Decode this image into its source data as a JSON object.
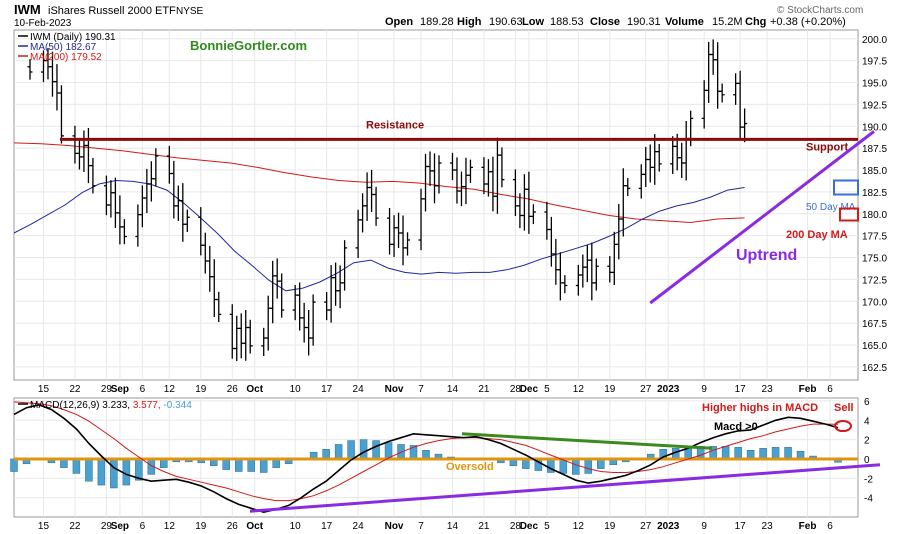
{
  "header": {
    "ticker": "IWM",
    "name": "iShares Russell 2000 ETF",
    "exchange": "NYSE",
    "date": "10-Feb-2023",
    "open_label": "Open",
    "open": "189.28",
    "high_label": "High",
    "high": "190.63",
    "low_label": "Low",
    "low": "188.53",
    "close_label": "Close",
    "close": "190.31",
    "volume_label": "Volume",
    "volume": "15.2M",
    "chg_label": "Chg",
    "chg": "+0.38 (+0.20%)",
    "watermark": "© StockCharts.com"
  },
  "colors": {
    "price": "#000000",
    "ma50": "#1f2a9a",
    "ma200": "#d11a1a",
    "resistance": "#8b0a0a",
    "uptrend": "#8a2be2",
    "oversold": "#e0950e",
    "downtrend_macd": "#3a8a1f",
    "histogram": "#4aa0cf",
    "brand": "#2e8b1c",
    "annotation_red": "#d11a1a",
    "annotation_blue": "#3b6fd6",
    "grid": "#e8e8e8"
  },
  "chart_data": [
    {
      "type": "ohlc",
      "legend": [
        {
          "name": "IWM (Daily)",
          "value": "190.31"
        },
        {
          "name": "MA(50)",
          "value": "182.67"
        },
        {
          "name": "MA(200)",
          "value": "179.52"
        }
      ],
      "ylim": [
        161,
        201
      ],
      "yticks": [
        162.5,
        165.0,
        167.5,
        170.0,
        172.5,
        175.0,
        177.5,
        180.0,
        182.5,
        185.0,
        187.5,
        190.0,
        192.5,
        195.0,
        197.5,
        200.0
      ],
      "xticks": [
        "15",
        "22",
        "29",
        "Sep",
        "6",
        "12",
        "19",
        "26",
        "Oct",
        "10",
        "17",
        "24",
        "Nov",
        "7",
        "14",
        "21",
        "28",
        "Dec",
        "5",
        "12",
        "19",
        "27",
        "2023",
        "9",
        "17",
        "23",
        "Feb",
        "6"
      ],
      "dates_start": "2022-08-12",
      "dates_end": "2023-02-10",
      "close": [
        196.2,
        197.5,
        196.8,
        195.1,
        193.8,
        188.9,
        186.9,
        186.5,
        187.8,
        185.5,
        183.2,
        181.0,
        182.4,
        180.1,
        178.5,
        177.4,
        179.9,
        181.8,
        183.4,
        184.0,
        186.6,
        184.6,
        180.9,
        181.5,
        178.8,
        179.6,
        176.4,
        174.6,
        172.8,
        170.2,
        168.5,
        164.6,
        166.9,
        165.2,
        167.0,
        164.9,
        165.8,
        169.2,
        172.9,
        172.3,
        169.0,
        170.7,
        168.1,
        167.0,
        165.8,
        169.9,
        169.0,
        172.7,
        171.2,
        172.1,
        176.1,
        179.3,
        180.9,
        183.0,
        182.2,
        179.5,
        176.5,
        178.4,
        177.8,
        176.1,
        177.0,
        181.7,
        185.4,
        184.9,
        183.2,
        185.8,
        185.0,
        182.6,
        183.1,
        184.4,
        185.3,
        183.4,
        184.8,
        182.0,
        186.7,
        183.9,
        180.9,
        179.8,
        182.8,
        179.7,
        180.2,
        178.2,
        175.4,
        173.6,
        172.1,
        171.8,
        173.0,
        173.9,
        174.7,
        172.1,
        174.0,
        173.3,
        176.5,
        179.4,
        183.2,
        182.9,
        184.5,
        186.2,
        185.3,
        187.1,
        185.7,
        187.7,
        186.4,
        185.8,
        188.6,
        190.9,
        194.1,
        198.2,
        197.6,
        194.0,
        193.6,
        194.9,
        189.9,
        190.31
      ],
      "ma50": [
        177.8,
        178.8,
        179.9,
        181.0,
        182.4,
        183.4,
        183.8,
        183.7,
        183.4,
        182.7,
        181.2,
        179.5,
        177.7,
        175.7,
        174.1,
        172.4,
        171.2,
        171.5,
        172.2,
        173.2,
        174.4,
        174.7,
        173.8,
        173.3,
        173.1,
        173.3,
        173.2,
        173.3,
        173.3,
        173.6,
        174.1,
        174.8,
        175.4,
        176.0,
        176.6,
        177.4,
        178.3,
        179.4,
        180.3,
        180.9,
        181.3,
        181.9,
        182.7,
        183.0
      ],
      "ma200": [
        188.1,
        188.0,
        187.8,
        187.5,
        187.2,
        186.8,
        186.4,
        186.1,
        185.8,
        185.3,
        184.7,
        184.2,
        183.8,
        183.6,
        183.7,
        183.5,
        183.1,
        182.8,
        182.2,
        181.7,
        181.0,
        180.4,
        179.8,
        179.4,
        179.2,
        179.0,
        179.4,
        179.52
      ],
      "annotations": {
        "brand": "BonnieGortler.com",
        "resistance": "Resistance",
        "resistance_level": 188.5,
        "support": "Support",
        "ma50_tag": "50 Day MA",
        "ma200_tag": "200 Day MA",
        "uptrend": "Uptrend",
        "uptrend_start": [
          "2022-12-28",
          169.8
        ],
        "uptrend_end": [
          "2023-02-10",
          188.5
        ]
      }
    },
    {
      "type": "macd",
      "legend": {
        "label": "MACD(12,26,9)",
        "macd": "3.233",
        "signal": "3.577",
        "hist": "-0.344"
      },
      "ylim": [
        -6.0,
        6.3
      ],
      "yticks": [
        -4,
        -2,
        0,
        2,
        4,
        6
      ],
      "macd": [
        4.6,
        5.3,
        5.6,
        5.1,
        4.2,
        3.1,
        1.6,
        0.3,
        -0.9,
        -1.6,
        -2.0,
        -2.3,
        -2.2,
        -2.1,
        -2.4,
        -2.8,
        -3.4,
        -4.1,
        -4.7,
        -5.1,
        -5.5,
        -5.2,
        -4.8,
        -4.0,
        -3.1,
        -2.3,
        -1.2,
        -0.1,
        0.7,
        1.3,
        1.8,
        2.2,
        2.6,
        2.5,
        2.4,
        2.3,
        2.2,
        2.3,
        2.0,
        1.6,
        1.0,
        0.4,
        -0.3,
        -1.0,
        -1.6,
        -2.2,
        -2.5,
        -2.3,
        -2.0,
        -1.7,
        -1.2,
        -0.6,
        0.2,
        0.7,
        1.1,
        1.7,
        2.2,
        2.6,
        2.9,
        3.0,
        3.5,
        4.0,
        4.3,
        4.2,
        3.9,
        3.6,
        3.233
      ],
      "signal": [
        5.9,
        5.8,
        5.7,
        5.5,
        5.1,
        4.6,
        3.9,
        3.0,
        2.1,
        1.1,
        0.2,
        -0.7,
        -1.3,
        -1.8,
        -2.1,
        -2.4,
        -2.7,
        -3.0,
        -3.4,
        -3.8,
        -4.1,
        -4.3,
        -4.3,
        -4.1,
        -3.8,
        -3.3,
        -2.7,
        -2.0,
        -1.3,
        -0.6,
        0.1,
        0.7,
        1.2,
        1.6,
        1.9,
        2.1,
        2.2,
        2.2,
        2.1,
        2.0,
        1.7,
        1.4,
        0.9,
        0.4,
        -0.1,
        -0.6,
        -1.0,
        -1.3,
        -1.4,
        -1.4,
        -1.3,
        -1.1,
        -0.8,
        -0.4,
        0.0,
        0.4,
        0.9,
        1.3,
        1.7,
        2.1,
        2.4,
        2.8,
        3.1,
        3.4,
        3.6,
        3.6,
        3.577
      ],
      "annotations": {
        "higher_highs": "Higher highs in MACD",
        "sell": "Sell",
        "macd_pos": "Macd >0",
        "oversold": "Oversold"
      }
    }
  ]
}
